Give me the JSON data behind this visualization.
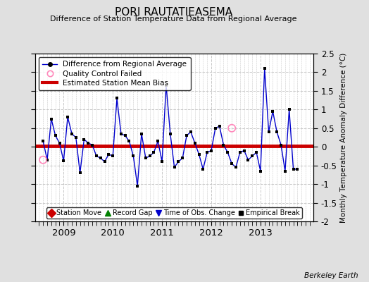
{
  "title": "PORI RAUTATIEASEMA",
  "subtitle": "Difference of Station Temperature Data from Regional Average",
  "ylabel": "Monthly Temperature Anomaly Difference (°C)",
  "credit": "Berkeley Earth",
  "ylim": [
    -2.0,
    2.5
  ],
  "yticks": [
    -2.0,
    -1.5,
    -1.0,
    -0.5,
    0.0,
    0.5,
    1.0,
    1.5,
    2.0,
    2.5
  ],
  "xlim": [
    2008.42,
    2014.08
  ],
  "xticks": [
    2009,
    2010,
    2011,
    2012,
    2013
  ],
  "bias_value": 0.02,
  "line_color": "#0000cc",
  "marker_color": "#000000",
  "bias_color": "#cc0000",
  "bg_color": "#e0e0e0",
  "plot_bg_color": "#ffffff",
  "grid_color": "#c8c8c8",
  "times": [
    2008.583,
    2008.667,
    2008.75,
    2008.833,
    2008.917,
    2009.0,
    2009.083,
    2009.167,
    2009.25,
    2009.333,
    2009.417,
    2009.5,
    2009.583,
    2009.667,
    2009.75,
    2009.833,
    2009.917,
    2010.0,
    2010.083,
    2010.167,
    2010.25,
    2010.333,
    2010.417,
    2010.5,
    2010.583,
    2010.667,
    2010.75,
    2010.833,
    2010.917,
    2011.0,
    2011.083,
    2011.167,
    2011.25,
    2011.333,
    2011.417,
    2011.5,
    2011.583,
    2011.667,
    2011.75,
    2011.833,
    2011.917,
    2012.0,
    2012.083,
    2012.167,
    2012.25,
    2012.333,
    2012.417,
    2012.5,
    2012.583,
    2012.667,
    2012.75,
    2012.833,
    2012.917,
    2013.0,
    2013.083,
    2013.167,
    2013.25,
    2013.333,
    2013.417,
    2013.5,
    2013.583,
    2013.667,
    2013.75
  ],
  "values": [
    0.15,
    -0.35,
    0.75,
    0.3,
    0.1,
    -0.38,
    0.8,
    0.35,
    0.25,
    -0.7,
    0.2,
    0.1,
    0.05,
    -0.25,
    -0.3,
    -0.4,
    -0.2,
    -0.25,
    1.3,
    0.35,
    0.3,
    0.15,
    -0.25,
    -1.05,
    0.35,
    -0.3,
    -0.25,
    -0.15,
    0.15,
    -0.4,
    1.65,
    0.35,
    -0.55,
    -0.4,
    -0.3,
    0.3,
    0.4,
    0.1,
    -0.2,
    -0.6,
    -0.15,
    -0.1,
    0.5,
    0.55,
    0.05,
    -0.15,
    -0.45,
    -0.55,
    -0.15,
    -0.1,
    -0.35,
    -0.25,
    -0.15,
    -0.65,
    2.1,
    0.4,
    0.95,
    0.4,
    0.05,
    -0.65,
    1.0,
    -0.6,
    -0.6
  ],
  "qc_failed_times": [
    2008.583,
    2012.417
  ],
  "qc_failed_values": [
    -0.35,
    0.5
  ]
}
